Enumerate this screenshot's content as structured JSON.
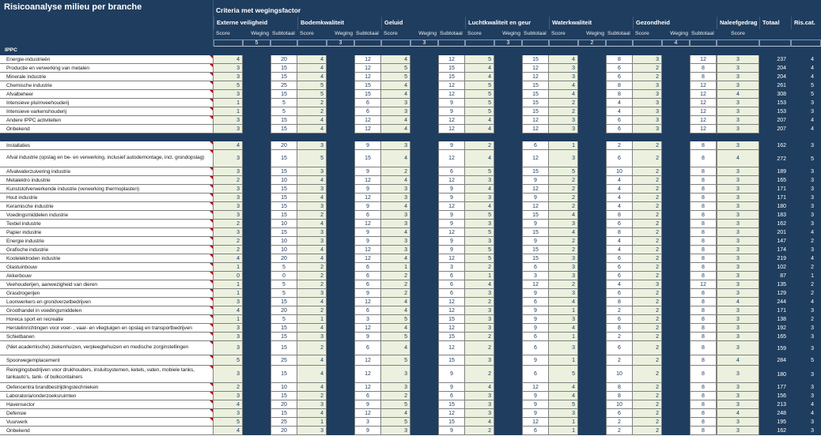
{
  "title": "Risicoanalyse milieu per branche",
  "header": {
    "criteria_title": "Criteria met wegingsfactor",
    "sub_labels": {
      "score": "Score",
      "weging": "Weging",
      "subtotaal": "Subtotaal"
    },
    "criteria": [
      {
        "name": "Externe veiligheid",
        "weight": 5
      },
      {
        "name": "Bodemkwaliteit",
        "weight": 3
      },
      {
        "name": "Geluid",
        "weight": 3
      },
      {
        "name": "Luchtkwaliteit en geur",
        "weight": 3
      },
      {
        "name": "Waterkwaliteit",
        "weight": 2
      },
      {
        "name": "Gezondheid",
        "weight": 4
      }
    ],
    "naleefgedrag_label": "Naleefgedrag",
    "naleefgedrag_sub": "Score",
    "totaal_label": "Totaal",
    "riscat_label": "Ris.cat."
  },
  "colors": {
    "navy": "#1f3d5e",
    "score_green": "#ebf1de",
    "cell_white": "#ffffff",
    "grid_border": "#808080",
    "note_red": "#c00000",
    "header_text": "#ffffff",
    "value_text": "#17375e"
  },
  "sections": [
    {
      "header": "IPPC",
      "rows": [
        {
          "label": "Energie-industrieën",
          "note": true,
          "hpx": 11,
          "v": [
            4,
            20,
            4,
            12,
            4,
            12,
            5,
            15,
            4,
            8,
            3,
            12
          ],
          "naleef": 3,
          "totaal": 237,
          "ris": 4
        },
        {
          "label": "Productie en verwerking van metalen",
          "note": true,
          "hpx": 11,
          "v": [
            3,
            15,
            4,
            12,
            5,
            15,
            4,
            12,
            3,
            6,
            2,
            8
          ],
          "naleef": 3,
          "totaal": 204,
          "ris": 4
        },
        {
          "label": "Minerale industrie",
          "note": true,
          "hpx": 11,
          "v": [
            3,
            15,
            4,
            12,
            5,
            15,
            4,
            12,
            3,
            6,
            2,
            8
          ],
          "naleef": 3,
          "totaal": 204,
          "ris": 4
        },
        {
          "label": "Chemische industrie",
          "note": true,
          "hpx": 11,
          "v": [
            5,
            25,
            5,
            15,
            4,
            12,
            5,
            15,
            4,
            8,
            3,
            12
          ],
          "naleef": 3,
          "totaal": 261,
          "ris": 5
        },
        {
          "label": "Afvalbeheer",
          "note": true,
          "hpx": 11,
          "v": [
            3,
            15,
            5,
            15,
            4,
            12,
            5,
            15,
            4,
            8,
            3,
            12
          ],
          "naleef": 4,
          "totaal": 308,
          "ris": 5
        },
        {
          "label": "Intensieve pluimveehouderij",
          "note": true,
          "hpx": 11,
          "v": [
            1,
            5,
            2,
            6,
            3,
            9,
            5,
            15,
            2,
            4,
            3,
            12
          ],
          "naleef": 3,
          "totaal": 153,
          "ris": 3
        },
        {
          "label": "Intensieve varkenshouderij",
          "note": true,
          "hpx": 11,
          "v": [
            1,
            5,
            2,
            6,
            3,
            9,
            5,
            15,
            2,
            4,
            3,
            12
          ],
          "naleef": 3,
          "totaal": 153,
          "ris": 3
        },
        {
          "label": "Andere IPPC activiteiten",
          "note": true,
          "hpx": 11,
          "v": [
            3,
            15,
            4,
            12,
            4,
            12,
            4,
            12,
            3,
            6,
            3,
            12
          ],
          "naleef": 3,
          "totaal": 207,
          "ris": 4
        },
        {
          "label": "Onbekend",
          "note": false,
          "hpx": 11,
          "v": [
            3,
            15,
            4,
            12,
            4,
            12,
            4,
            12,
            3,
            6,
            3,
            12
          ],
          "naleef": 3,
          "totaal": 207,
          "ris": 4
        }
      ]
    },
    {
      "header": "",
      "rows": [
        {
          "label": "Installaties",
          "note": true,
          "hpx": 11,
          "v": [
            4,
            20,
            3,
            9,
            3,
            9,
            2,
            6,
            1,
            2,
            2,
            8
          ],
          "naleef": 3,
          "totaal": 162,
          "ris": 3
        },
        {
          "label": "Afval industrie (opslag en be- en verwerking, inclusief autodemontage, incl. grondopslag)",
          "note": true,
          "hpx": 22,
          "v": [
            3,
            15,
            5,
            15,
            4,
            12,
            4,
            12,
            3,
            6,
            2,
            8
          ],
          "naleef": 4,
          "totaal": 272,
          "ris": 5
        },
        {
          "label": "Afvalwaterzuivering industrie",
          "note": true,
          "hpx": 11,
          "v": [
            3,
            15,
            3,
            9,
            2,
            6,
            5,
            15,
            5,
            10,
            2,
            8
          ],
          "naleef": 3,
          "totaal": 189,
          "ris": 3
        },
        {
          "label": "Metalektro industrie",
          "note": true,
          "hpx": 11,
          "v": [
            2,
            10,
            4,
            12,
            4,
            12,
            3,
            9,
            2,
            4,
            2,
            8
          ],
          "naleef": 3,
          "totaal": 165,
          "ris": 3
        },
        {
          "label": "Kunststofverwerkende industrie (verwerking thermoplasten)",
          "note": true,
          "hpx": 11,
          "v": [
            3,
            15,
            3,
            9,
            3,
            9,
            4,
            12,
            2,
            4,
            2,
            8
          ],
          "naleef": 3,
          "totaal": 171,
          "ris": 3
        },
        {
          "label": "Hout industrie",
          "note": true,
          "hpx": 11,
          "v": [
            3,
            15,
            4,
            12,
            3,
            9,
            3,
            9,
            2,
            4,
            2,
            8
          ],
          "naleef": 3,
          "totaal": 171,
          "ris": 3
        },
        {
          "label": "Keramische industrie",
          "note": true,
          "hpx": 11,
          "v": [
            3,
            15,
            3,
            9,
            4,
            12,
            4,
            12,
            2,
            4,
            2,
            8
          ],
          "naleef": 3,
          "totaal": 180,
          "ris": 3
        },
        {
          "label": "Voedingsmiddelen industrie",
          "note": true,
          "hpx": 11,
          "v": [
            3,
            15,
            2,
            6,
            3,
            9,
            5,
            15,
            4,
            8,
            2,
            8
          ],
          "naleef": 3,
          "totaal": 183,
          "ris": 3
        },
        {
          "label": "Textiel industrie",
          "note": true,
          "hpx": 11,
          "v": [
            2,
            10,
            4,
            12,
            3,
            9,
            3,
            9,
            3,
            6,
            2,
            8
          ],
          "naleef": 3,
          "totaal": 162,
          "ris": 3
        },
        {
          "label": "Papier industrie",
          "note": true,
          "hpx": 11,
          "v": [
            3,
            15,
            3,
            9,
            4,
            12,
            5,
            15,
            4,
            8,
            2,
            8
          ],
          "naleef": 3,
          "totaal": 201,
          "ris": 4
        },
        {
          "label": "Energie industrie",
          "note": true,
          "hpx": 11,
          "v": [
            2,
            10,
            3,
            9,
            3,
            9,
            3,
            9,
            2,
            4,
            2,
            8
          ],
          "naleef": 3,
          "totaal": 147,
          "ris": 2
        },
        {
          "label": "Grafische industrie",
          "note": true,
          "hpx": 11,
          "v": [
            2,
            10,
            4,
            12,
            3,
            9,
            5,
            15,
            2,
            4,
            2,
            8
          ],
          "naleef": 3,
          "totaal": 174,
          "ris": 3
        },
        {
          "label": "Koolelektroden industrie",
          "note": true,
          "hpx": 11,
          "v": [
            4,
            20,
            4,
            12,
            4,
            12,
            5,
            15,
            3,
            6,
            2,
            8
          ],
          "naleef": 3,
          "totaal": 219,
          "ris": 4
        },
        {
          "label": "Glastuinbouw",
          "note": true,
          "hpx": 11,
          "v": [
            1,
            5,
            2,
            6,
            1,
            3,
            2,
            6,
            3,
            6,
            2,
            8
          ],
          "naleef": 3,
          "totaal": 102,
          "ris": 2
        },
        {
          "label": "Akkerbouw",
          "note": true,
          "hpx": 11,
          "v": [
            0,
            0,
            2,
            6,
            2,
            6,
            1,
            3,
            3,
            6,
            2,
            8
          ],
          "naleef": 3,
          "totaal": 87,
          "ris": 1
        },
        {
          "label": "Veehouderijen, aanwezigheid van dieren",
          "note": true,
          "hpx": 11,
          "v": [
            1,
            5,
            2,
            6,
            2,
            6,
            4,
            12,
            2,
            4,
            3,
            12
          ],
          "naleef": 3,
          "totaal": 135,
          "ris": 2
        },
        {
          "label": "Grasdrogerijen",
          "note": true,
          "hpx": 11,
          "v": [
            1,
            5,
            3,
            9,
            2,
            6,
            3,
            9,
            3,
            6,
            2,
            8
          ],
          "naleef": 3,
          "totaal": 129,
          "ris": 2
        },
        {
          "label": "Loonwerkers en grondverzetbedrijven",
          "note": true,
          "hpx": 11,
          "v": [
            3,
            15,
            4,
            12,
            4,
            12,
            2,
            6,
            4,
            8,
            2,
            8
          ],
          "naleef": 4,
          "totaal": 244,
          "ris": 4
        },
        {
          "label": "Groothandel in voedingsmiddelen",
          "note": true,
          "hpx": 11,
          "v": [
            4,
            20,
            2,
            6,
            4,
            12,
            3,
            9,
            1,
            2,
            2,
            8
          ],
          "naleef": 3,
          "totaal": 171,
          "ris": 3
        },
        {
          "label": "Horeca sport en recreatie",
          "note": true,
          "hpx": 11,
          "v": [
            1,
            5,
            1,
            3,
            5,
            15,
            3,
            9,
            3,
            6,
            2,
            8
          ],
          "naleef": 3,
          "totaal": 138,
          "ris": 2
        },
        {
          "label": "Herstelinrichtingen voor voer- , vaar- en vliegtuigen en opslag en transportbedrijven",
          "note": true,
          "hpx": 11,
          "v": [
            3,
            15,
            4,
            12,
            4,
            12,
            3,
            9,
            4,
            8,
            2,
            8
          ],
          "naleef": 3,
          "totaal": 192,
          "ris": 3
        },
        {
          "label": "Schietbanen",
          "note": true,
          "hpx": 11,
          "v": [
            3,
            15,
            3,
            9,
            5,
            15,
            2,
            6,
            1,
            2,
            2,
            8
          ],
          "naleef": 3,
          "totaal": 165,
          "ris": 3
        },
        {
          "label": "(Niet academische) ziekenhuizen, verpleegtehuizen en medische zorginstellingen",
          "note": true,
          "hpx": 18,
          "v": [
            3,
            15,
            2,
            6,
            4,
            12,
            2,
            6,
            3,
            6,
            2,
            8
          ],
          "naleef": 3,
          "totaal": 159,
          "ris": 3
        },
        {
          "label": "Spoorwegemplacement",
          "note": true,
          "hpx": 13,
          "v": [
            5,
            25,
            4,
            12,
            5,
            15,
            3,
            9,
            1,
            2,
            2,
            8
          ],
          "naleef": 4,
          "totaal": 284,
          "ris": 5
        },
        {
          "label": "Reinigingsbedrijven voor drukhouders, insluitsystemen, ketels, vaten, mobiele tanks, tankauto's, tank- of bulkcontainers",
          "note": true,
          "hpx": 22,
          "v": [
            3,
            15,
            4,
            12,
            3,
            9,
            2,
            6,
            5,
            10,
            2,
            8
          ],
          "naleef": 3,
          "totaal": 180,
          "ris": 3
        },
        {
          "label": "Oefencentra brandbestrijdingstechnieken",
          "note": true,
          "hpx": 11,
          "v": [
            2,
            10,
            4,
            12,
            3,
            9,
            4,
            12,
            4,
            8,
            2,
            8
          ],
          "naleef": 3,
          "totaal": 177,
          "ris": 3
        },
        {
          "label": "Laboratoria/onderzoeksruimten",
          "note": true,
          "hpx": 11,
          "v": [
            3,
            15,
            2,
            6,
            2,
            6,
            3,
            9,
            4,
            8,
            2,
            8
          ],
          "naleef": 3,
          "totaal": 156,
          "ris": 3
        },
        {
          "label": "Havensector",
          "note": true,
          "hpx": 11,
          "v": [
            4,
            20,
            3,
            9,
            5,
            15,
            3,
            9,
            5,
            10,
            2,
            8
          ],
          "naleef": 3,
          "totaal": 213,
          "ris": 4
        },
        {
          "label": "Defensie",
          "note": true,
          "hpx": 11,
          "v": [
            3,
            15,
            4,
            12,
            4,
            12,
            3,
            9,
            3,
            6,
            2,
            8
          ],
          "naleef": 4,
          "totaal": 248,
          "ris": 4
        },
        {
          "label": "Vuurwerk",
          "note": true,
          "hpx": 11,
          "v": [
            5,
            25,
            1,
            3,
            5,
            15,
            4,
            12,
            1,
            2,
            2,
            8
          ],
          "naleef": 3,
          "totaal": 195,
          "ris": 3
        },
        {
          "label": "Onbekend",
          "note": false,
          "hpx": 11,
          "v": [
            4,
            20,
            3,
            9,
            3,
            9,
            2,
            6,
            1,
            2,
            2,
            8
          ],
          "naleef": 3,
          "totaal": 162,
          "ris": 3
        }
      ]
    }
  ]
}
